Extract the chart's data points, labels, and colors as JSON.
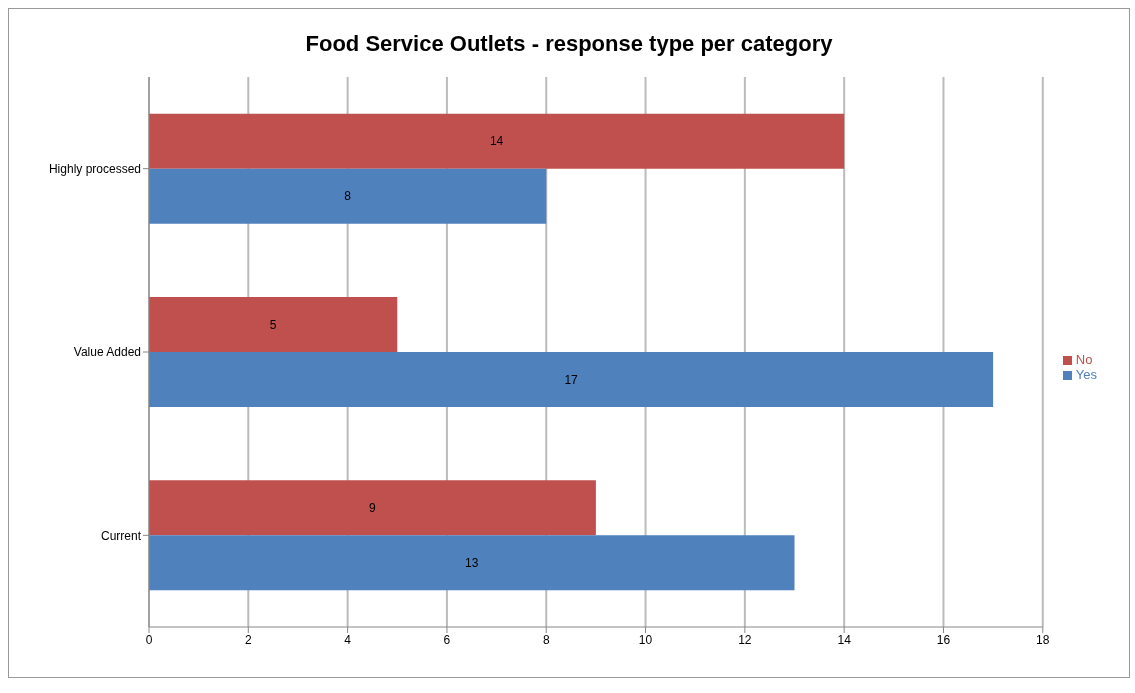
{
  "chart_data": {
    "type": "bar",
    "orientation": "horizontal",
    "title": "Food Service Outlets - response type per category",
    "categories": [
      "Highly processed",
      "Value Added",
      "Current"
    ],
    "series": [
      {
        "name": "No",
        "color": "#c0504d",
        "values": [
          14,
          5,
          9
        ]
      },
      {
        "name": "Yes",
        "color": "#4f81bd",
        "values": [
          8,
          17,
          13
        ]
      }
    ],
    "xlim": [
      0,
      18
    ],
    "xticks": [
      0,
      2,
      4,
      6,
      8,
      10,
      12,
      14,
      16,
      18
    ],
    "grid": "x",
    "legend": "right",
    "data_labels": true
  }
}
